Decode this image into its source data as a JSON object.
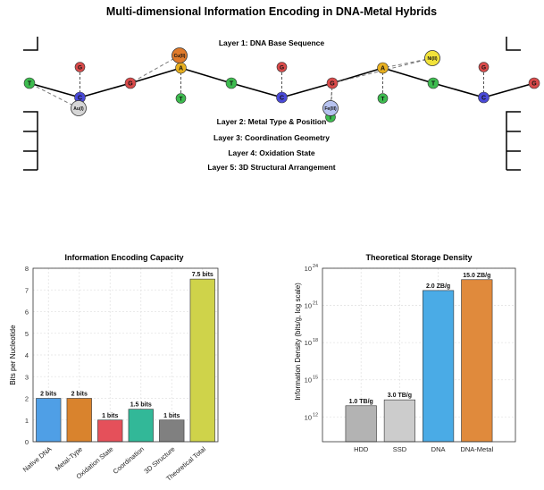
{
  "figure": {
    "title": "Multi-dimensional Information Encoding in DNA-Metal Hybrids",
    "layers": [
      "Layer 1: DNA Base Sequence",
      "Layer 2: Metal Type & Position",
      "Layer 3: Coordination Geometry",
      "Layer 4: Oxidation State",
      "Layer 5: 3D Structural Arrangement"
    ]
  },
  "colors": {
    "T": "#3dbb4f",
    "G": "#d94a4a",
    "C": "#4a4ad9",
    "A": "#e8b020",
    "Au": "#d6d6d6",
    "Cu": "#e07a2a",
    "Fe": "#b7c3f0",
    "Ni": "#f2e33a"
  },
  "diagram": {
    "backbone": [
      {
        "base": "T",
        "side": ""
      },
      {
        "base": "C",
        "side": "G"
      },
      {
        "base": "G",
        "side": ""
      },
      {
        "base": "A",
        "side": "T"
      },
      {
        "base": "T",
        "side": ""
      },
      {
        "base": "C",
        "side": "G"
      },
      {
        "base": "G",
        "side": "T"
      },
      {
        "base": "A",
        "side": "T"
      },
      {
        "base": "T",
        "side": ""
      },
      {
        "base": "C",
        "side": "G"
      },
      {
        "base": "G",
        "side": ""
      }
    ],
    "metals": [
      {
        "label": "Au(I)",
        "color_key": "Au"
      },
      {
        "label": "Cu(II)",
        "color_key": "Cu"
      },
      {
        "label": "Fe(III)",
        "color_key": "Fe"
      },
      {
        "label": "Ni(II)",
        "color_key": "Ni"
      }
    ]
  },
  "chart_data": [
    {
      "type": "bar",
      "title": "Information Encoding Capacity",
      "ylabel": "Bits per Nucleotide",
      "xlabel": "",
      "categories": [
        "Native DNA",
        "Metal-Type",
        "Oxidation State",
        "Coordination",
        "3D Structure",
        "Theoretical Total"
      ],
      "values": [
        2,
        2,
        1,
        1.5,
        1,
        7.5
      ],
      "data_labels": [
        "2 bits",
        "2 bits",
        "1 bits",
        "1.5 bits",
        "1 bits",
        "7.5 bits"
      ],
      "bar_colors": [
        "#4f9fe6",
        "#d9832d",
        "#e5505a",
        "#32b898",
        "#808080",
        "#cfd34a"
      ],
      "ylim": [
        0,
        8
      ],
      "yticks": [
        "0",
        "1",
        "2",
        "3",
        "4",
        "5",
        "6",
        "7",
        "8"
      ],
      "grid": true
    },
    {
      "type": "bar",
      "title": "Theoretical Storage Density",
      "ylabel": "Information Density (bits/g, log scale)",
      "xlabel": "",
      "log_scale": true,
      "categories": [
        "HDD",
        "SSD",
        "DNA",
        "DNA-Metal"
      ],
      "values": [
        8000000000000.0,
        24000000000000.0,
        1.6e+22,
        1.2e+23
      ],
      "data_labels": [
        "1.0 TB/g",
        "3.0 TB/g",
        "2.0 ZB/g",
        "15.0 ZB/g"
      ],
      "bar_colors": [
        "#b3b3b3",
        "#cccccc",
        "#4aabe6",
        "#e08a3c"
      ],
      "ylim_exp": [
        10,
        24
      ],
      "yticks_exp": [
        "12",
        "15",
        "18",
        "21",
        "24"
      ],
      "ytick_base": "10",
      "grid": true
    }
  ]
}
